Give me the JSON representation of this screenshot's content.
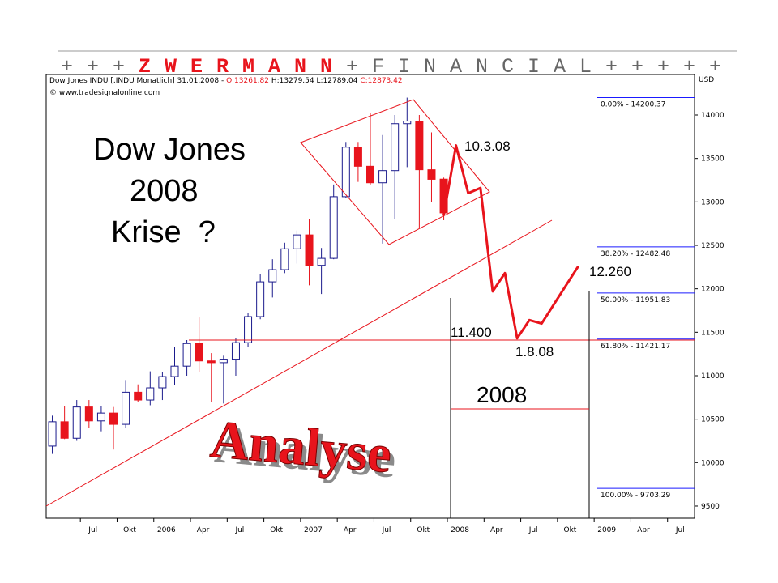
{
  "banner": {
    "prefix": "+ + +",
    "brand": "Z W E R M A N N",
    "suffix": "+ F I N A N C I A L + + + + +"
  },
  "chart_data": {
    "type": "candlestick",
    "header": {
      "instrument": "Dow Jones INDU [.INDU Monatlich] 31.01.2008 -",
      "open": "O:13261.82",
      "high_low": "H:13279.54 L:12789.04",
      "close": "C:12873.42",
      "source": "© www.tradesignalonline.com"
    },
    "currency": "USD",
    "categories": [
      null,
      null,
      "Jul",
      null,
      null,
      "Okt",
      null,
      null,
      "2006",
      null,
      null,
      "Apr",
      null,
      null,
      "Jul",
      null,
      null,
      "Okt",
      null,
      null,
      "2007",
      null,
      null,
      "Apr",
      null,
      null,
      "Jul",
      null,
      null,
      "Okt",
      null,
      null,
      "2008",
      null,
      null,
      "Apr",
      null,
      null,
      "Jul",
      null,
      null,
      "Okt",
      null,
      null,
      "2009",
      null,
      null,
      "Apr",
      null,
      null,
      "Jul",
      null,
      null
    ],
    "open": [
      10190,
      10470,
      10280,
      10640,
      10480,
      10570,
      10440,
      10810,
      10720,
      10860,
      10990,
      11110,
      11370,
      11170,
      11150,
      11190,
      11380,
      11680,
      12080,
      12220,
      12460,
      12620,
      12270,
      12350,
      13060,
      13630,
      13410,
      13220,
      13360,
      13900,
      13930,
      13370,
      13261.82,
      null,
      null,
      null,
      null,
      null,
      null,
      null,
      null,
      null,
      null,
      null,
      null,
      null,
      null,
      null,
      null,
      null,
      null,
      null,
      null
    ],
    "high": [
      10540,
      10650,
      10720,
      10720,
      10650,
      10640,
      10950,
      10900,
      11050,
      11040,
      11330,
      11410,
      11670,
      11260,
      11230,
      11430,
      11720,
      12170,
      12340,
      12530,
      12670,
      12800,
      12470,
      13200,
      13690,
      13690,
      14020,
      13770,
      14000,
      14200,
      14000,
      13800,
      13279.54,
      null,
      null,
      null,
      null,
      null,
      null,
      null,
      null,
      null,
      null,
      null,
      null,
      null,
      null,
      null,
      null,
      null,
      null,
      null,
      null
    ],
    "low": [
      10100,
      10270,
      10250,
      10400,
      10360,
      10150,
      10400,
      10700,
      10660,
      10720,
      10890,
      11000,
      11040,
      10700,
      10680,
      11000,
      11330,
      11650,
      11900,
      12180,
      12290,
      12040,
      11940,
      12340,
      13050,
      13230,
      13200,
      12520,
      12800,
      13400,
      12700,
      13000,
      12789.04,
      null,
      null,
      null,
      null,
      null,
      null,
      null,
      null,
      null,
      null,
      null,
      null,
      null,
      null,
      null,
      null,
      null,
      null,
      null,
      null
    ],
    "close": [
      10470,
      10280,
      10640,
      10480,
      10570,
      10440,
      10810,
      10720,
      10860,
      10990,
      11110,
      11370,
      11170,
      11150,
      11190,
      11380,
      11680,
      12080,
      12220,
      12460,
      12620,
      12270,
      12350,
      13060,
      13630,
      13410,
      13220,
      13360,
      13900,
      13930,
      13370,
      13260,
      12873.42,
      null,
      null,
      null,
      null,
      null,
      null,
      null,
      null,
      null,
      null,
      null,
      null,
      null,
      null,
      null,
      null,
      null,
      null,
      null,
      null
    ],
    "up_color": "#ffffff",
    "down_color": "#e8141c",
    "forecast": {
      "color": "#e8141c",
      "values": [
        null,
        null,
        null,
        null,
        null,
        null,
        null,
        null,
        null,
        null,
        null,
        null,
        null,
        null,
        null,
        null,
        null,
        null,
        null,
        null,
        null,
        null,
        null,
        null,
        null,
        null,
        null,
        null,
        null,
        null,
        null,
        null,
        12850,
        13650,
        13100,
        13160,
        11970,
        12180,
        11430,
        11640,
        11600,
        11820,
        12040,
        12260,
        null,
        null,
        null,
        null,
        null,
        null,
        null,
        null,
        null
      ]
    },
    "fib_levels": [
      {
        "value": 14200.37,
        "label": "0.00% - 14200.37"
      },
      {
        "value": 12482.48,
        "label": "38.20% - 12482.48"
      },
      {
        "value": 11951.83,
        "label": "50.00% - 11951.83"
      },
      {
        "value": 11421.17,
        "label": "61.80% - 11421.17"
      },
      {
        "value": 9703.29,
        "label": "100.00% - 9703.29"
      }
    ],
    "fib_color": "#1a1aff",
    "ylim": [
      9360,
      14466
    ],
    "yticks": [
      9500,
      10000,
      10500,
      11000,
      11500,
      12000,
      12500,
      13000,
      13500,
      14000
    ],
    "annotations": {
      "title_line1": "Dow Jones",
      "title_line2": "2008",
      "title_line3": "Krise  ?",
      "stamp": "Analyse",
      "peak": "10.3.08",
      "support": "11.400",
      "low": "1.8.08",
      "target": "12.260",
      "year": "2008"
    }
  }
}
